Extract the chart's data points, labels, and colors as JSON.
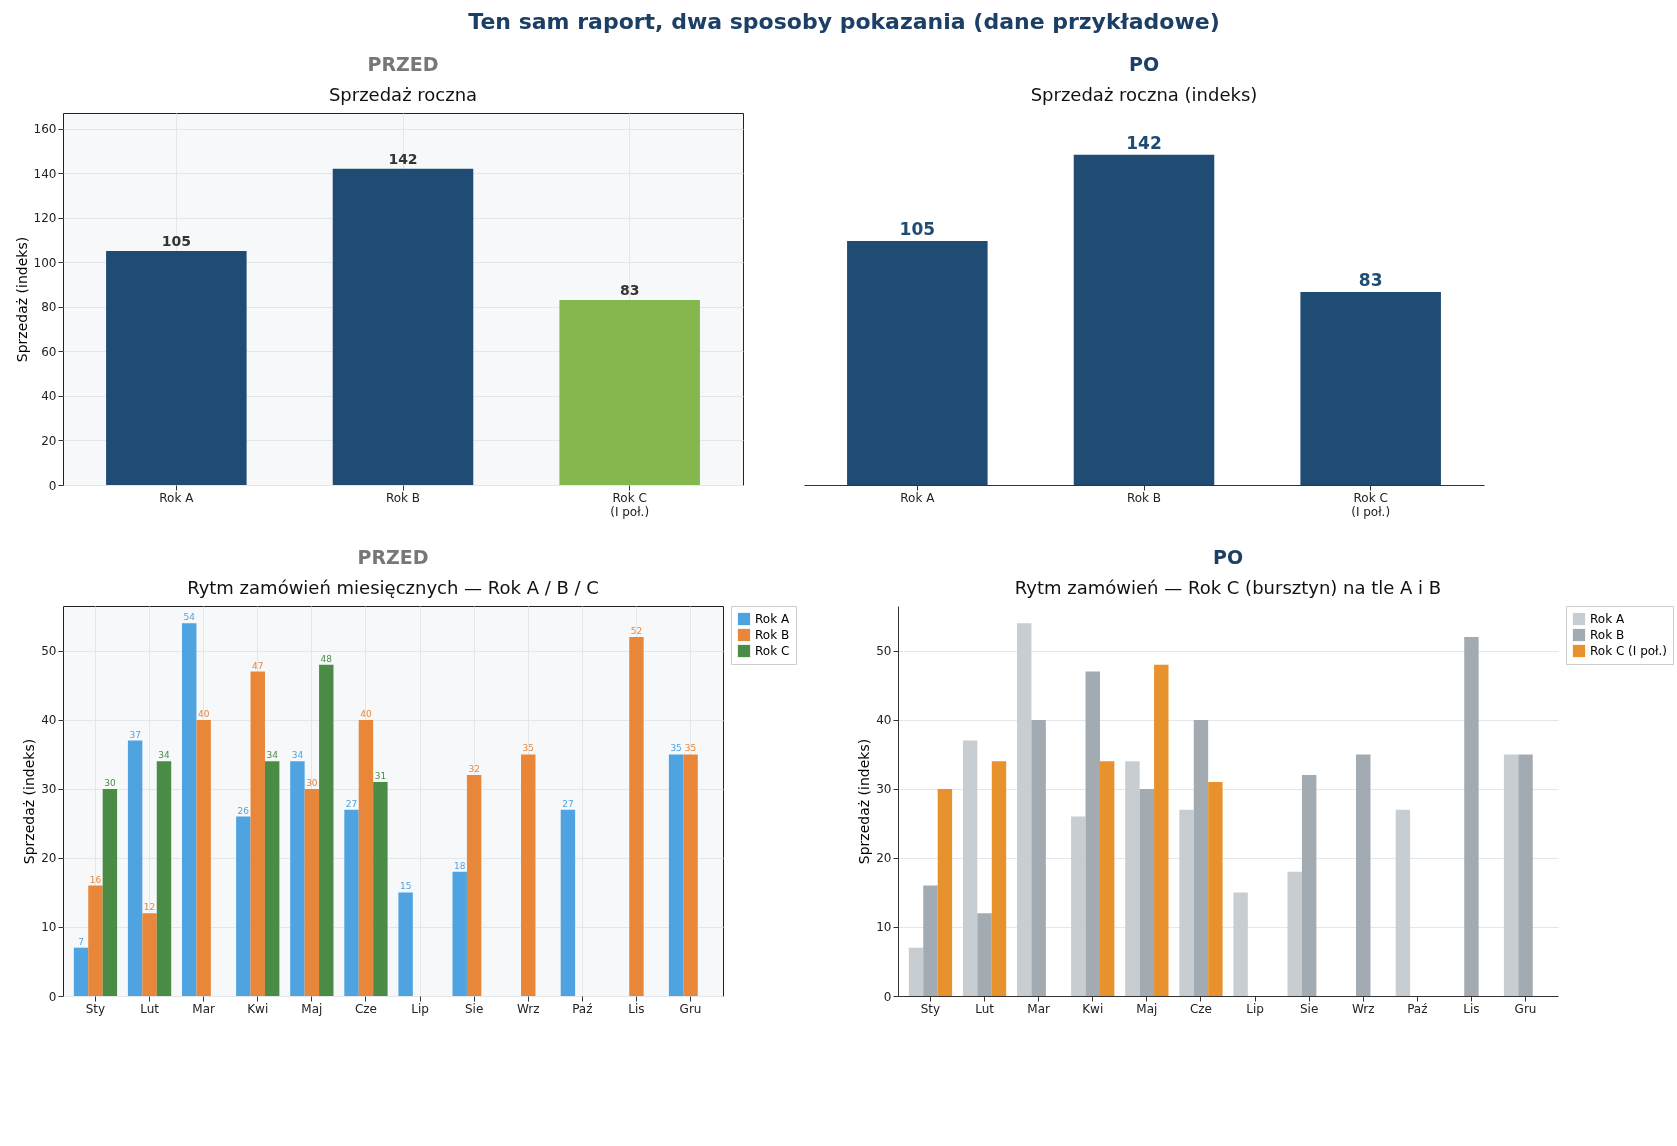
{
  "chart_data": [
    {
      "type": "bar",
      "title": "Sprzedaż roczna",
      "annotations": [
        "Ten sam raport, dwa sposoby pokazania  (dane przykładowe)",
        "PRZED"
      ],
      "ylabel": "Sprzedaż (indeks)",
      "categories": [
        "Rok A",
        "Rok B",
        "Rok C\n(I poł.)"
      ],
      "values": [
        105,
        142,
        83
      ],
      "colors": [
        "#204b73",
        "#204b73",
        "#84b74e"
      ],
      "ylim": [
        0,
        167
      ],
      "yticks": [
        0,
        20,
        40,
        60,
        80,
        100,
        120,
        140,
        160
      ],
      "grid": true,
      "data_labels": true
    },
    {
      "type": "bar",
      "title": "Sprzedaż roczna (indeks)",
      "annotations": [
        "PO"
      ],
      "categories": [
        "Rok A",
        "Rok B",
        "Rok C\n(I poł.)"
      ],
      "values": [
        105,
        142,
        83
      ],
      "colors": [
        "#204b73",
        "#204b73",
        "#204b73"
      ],
      "tick_labels": "x",
      "data_labels": true
    },
    {
      "type": "bar",
      "title": "Rytm zamówień miesięcznych — Rok A / B / C",
      "annotations": [
        "PRZED"
      ],
      "ylabel": "Sprzedaż (indeks)",
      "categories": [
        "Sty",
        "Lut",
        "Mar",
        "Kwi",
        "Maj",
        "Cze",
        "Lip",
        "Sie",
        "Wrz",
        "Paź",
        "Lis",
        "Gru"
      ],
      "ylim": [
        0,
        56.5
      ],
      "yticks": [
        0,
        10,
        20,
        30,
        40,
        50
      ],
      "grid": true,
      "legend": "top right",
      "data_labels": true,
      "series": [
        {
          "name": "Rok A",
          "color": "#4fa3e0",
          "values": [
            7,
            37,
            54,
            26,
            34,
            27,
            15,
            18,
            null,
            27,
            null,
            35
          ]
        },
        {
          "name": "Rok B",
          "color": "#e8873a",
          "values": [
            16,
            12,
            40,
            47,
            30,
            40,
            null,
            32,
            35,
            null,
            52,
            35
          ]
        },
        {
          "name": "Rok C",
          "color": "#4a8c46",
          "values": [
            30,
            34,
            null,
            34,
            48,
            31,
            null,
            null,
            null,
            null,
            null,
            null
          ]
        }
      ]
    },
    {
      "type": "bar",
      "title": "Rytm zamówień — Rok C (bursztyn) na tle A i B",
      "annotations": [
        "PO"
      ],
      "ylabel": "Sprzedaż (indeks)",
      "categories": [
        "Sty",
        "Lut",
        "Mar",
        "Kwi",
        "Maj",
        "Cze",
        "Lip",
        "Sie",
        "Wrz",
        "Paź",
        "Lis",
        "Gru"
      ],
      "ylim": [
        0,
        56.5
      ],
      "yticks": [
        0,
        10,
        20,
        30,
        40,
        50
      ],
      "grid": "y",
      "legend": "top right",
      "series": [
        {
          "name": "Rok A",
          "color": "#c8cdd2",
          "values": [
            7,
            37,
            54,
            26,
            34,
            27,
            15,
            18,
            null,
            27,
            null,
            35
          ]
        },
        {
          "name": "Rok B",
          "color": "#a2aab2",
          "values": [
            16,
            12,
            40,
            47,
            30,
            40,
            null,
            32,
            35,
            null,
            52,
            35
          ]
        },
        {
          "name": "Rok C (I poł.)",
          "color": "#e8922e",
          "values": [
            30,
            34,
            null,
            34,
            48,
            31,
            null,
            null,
            null,
            null,
            null,
            null
          ]
        }
      ]
    }
  ]
}
